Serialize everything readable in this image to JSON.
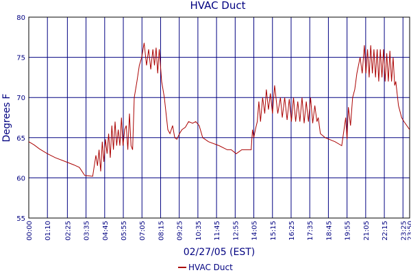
{
  "chart_data": {
    "type": "line",
    "title": "HVAC Duct",
    "xlabel": "02/27/05 (EST)",
    "ylabel": "Degrees F",
    "xlim": [
      0,
      1430
    ],
    "ylim": [
      55,
      80
    ],
    "yticks": [
      55,
      60,
      65,
      70,
      75,
      80
    ],
    "xticks": [
      {
        "value": 0,
        "label": "00:00"
      },
      {
        "value": 70,
        "label": "01:10"
      },
      {
        "value": 145,
        "label": "02:25"
      },
      {
        "value": 215,
        "label": "03:35"
      },
      {
        "value": 285,
        "label": "04:45"
      },
      {
        "value": 355,
        "label": "05:55"
      },
      {
        "value": 425,
        "label": "07:05"
      },
      {
        "value": 495,
        "label": "08:15"
      },
      {
        "value": 565,
        "label": "09:25"
      },
      {
        "value": 635,
        "label": "10:35"
      },
      {
        "value": 705,
        "label": "11:45"
      },
      {
        "value": 775,
        "label": "12:55"
      },
      {
        "value": 845,
        "label": "14:05"
      },
      {
        "value": 915,
        "label": "15:15"
      },
      {
        "value": 985,
        "label": "16:25"
      },
      {
        "value": 1055,
        "label": "17:35"
      },
      {
        "value": 1125,
        "label": "18:45"
      },
      {
        "value": 1195,
        "label": "19:55"
      },
      {
        "value": 1265,
        "label": "21:05"
      },
      {
        "value": 1335,
        "label": "22:15"
      },
      {
        "value": 1405,
        "label": "23:25"
      },
      {
        "value": 1430,
        "label": "23:50"
      }
    ],
    "grid": true,
    "legend": "bottom",
    "x": [
      0,
      20,
      40,
      70,
      100,
      140,
      170,
      190,
      210,
      240,
      252,
      258,
      264,
      270,
      276,
      282,
      288,
      294,
      300,
      306,
      312,
      318,
      324,
      330,
      336,
      342,
      348,
      354,
      360,
      366,
      372,
      378,
      384,
      390,
      396,
      406,
      415,
      424,
      433,
      442,
      450,
      458,
      466,
      472,
      478,
      484,
      490,
      499,
      509,
      522,
      530,
      540,
      548,
      556,
      566,
      575,
      588,
      600,
      615,
      627,
      640,
      653,
      675,
      715,
      745,
      760,
      779,
      800,
      835,
      840,
      845,
      852,
      858,
      864,
      870,
      878,
      886,
      892,
      900,
      907,
      915,
      923,
      935,
      945,
      952,
      961,
      970,
      978,
      986,
      994,
      1002,
      1010,
      1018,
      1026,
      1034,
      1042,
      1050,
      1058,
      1066,
      1074,
      1082,
      1087,
      1095,
      1113,
      1150,
      1175,
      1190,
      1195,
      1200,
      1208,
      1216,
      1224,
      1232,
      1244,
      1252,
      1260,
      1266,
      1272,
      1278,
      1284,
      1290,
      1296,
      1302,
      1308,
      1314,
      1320,
      1326,
      1332,
      1338,
      1344,
      1350,
      1356,
      1362,
      1368,
      1374,
      1378,
      1388,
      1400,
      1409,
      1430
    ],
    "series": [
      {
        "name": "HVAC Duct",
        "color": "#aa0000",
        "values": [
          64.5,
          64.1,
          63.6,
          63,
          62.5,
          62,
          61.6,
          61.3,
          60.3,
          60.2,
          62.8,
          61.5,
          63.5,
          60.8,
          64.5,
          62,
          64.8,
          63,
          65.5,
          62.5,
          66.5,
          63.5,
          67,
          64,
          66,
          64,
          67.5,
          64,
          66,
          66.5,
          63.5,
          68,
          64,
          63.5,
          70,
          72,
          74,
          75,
          76.8,
          74,
          76,
          73.5,
          76,
          74,
          76.2,
          73,
          76,
          72,
          70,
          66,
          65.5,
          66.5,
          65,
          64.8,
          65.5,
          66,
          66.3,
          67,
          66.8,
          67,
          66.5,
          65,
          64.5,
          64,
          63.5,
          63.5,
          63,
          63.5,
          63.5,
          66,
          65,
          66.2,
          67,
          69.5,
          67,
          70,
          68,
          71,
          68.5,
          70.5,
          68,
          71.5,
          68,
          70,
          67.5,
          70,
          67.2,
          69.8,
          67,
          70,
          67,
          69.5,
          67,
          70,
          66.8,
          69.5,
          67,
          70,
          66.8,
          69,
          67,
          67.5,
          65.5,
          65,
          64.5,
          64,
          67.5,
          64.8,
          68.8,
          66.5,
          70,
          71,
          73,
          75,
          73,
          76.5,
          73,
          76,
          72.5,
          76.5,
          73,
          76,
          72.5,
          76,
          72,
          76,
          72.5,
          76,
          72,
          75.5,
          72,
          75.8,
          72,
          75,
          71.5,
          72,
          69,
          67.5,
          67,
          66
        ]
      }
    ]
  }
}
